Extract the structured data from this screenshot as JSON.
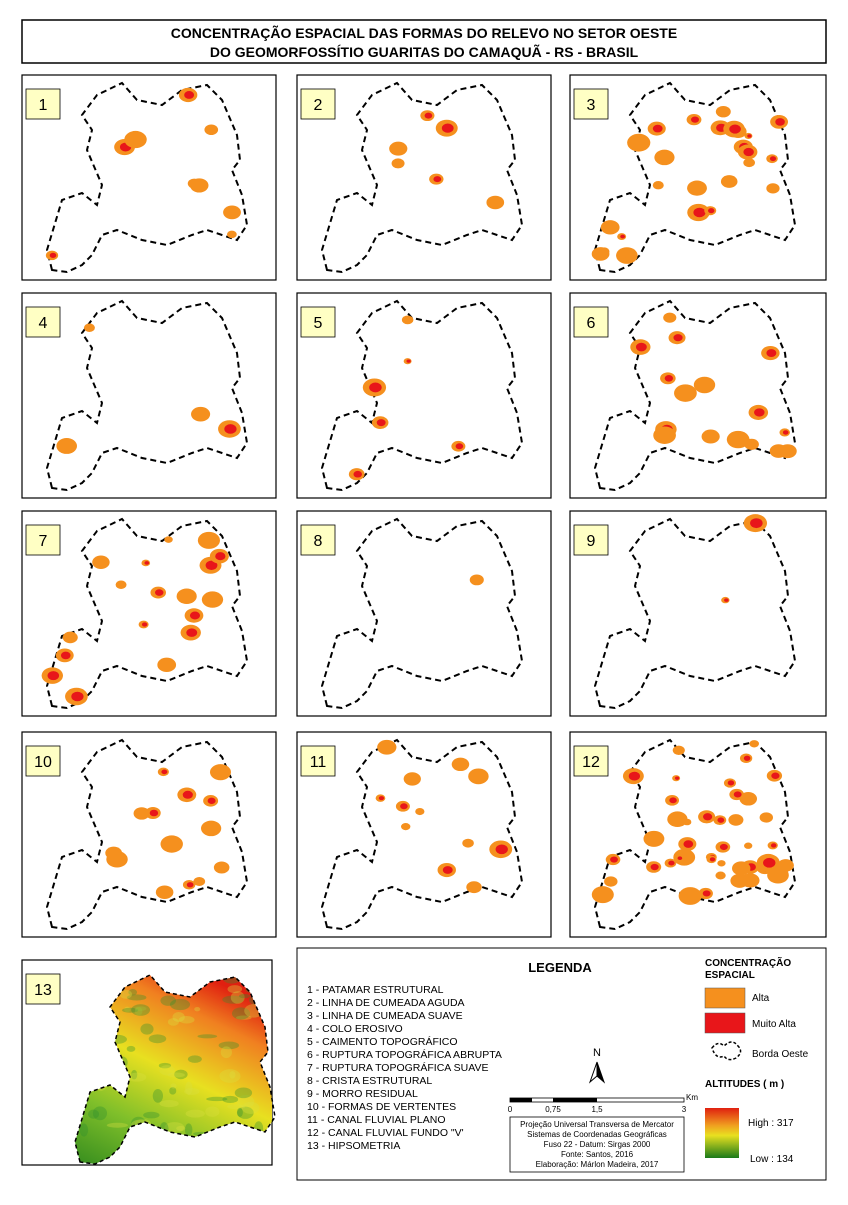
{
  "title": [
    "CONCENTRAÇÃO ESPACIAL DAS FORMAS DO RELEVO NO SETOR OESTE",
    "DO GEOMORFOSSÍTIO GUARITAS DO CAMAQUÃ - RS - BRASIL"
  ],
  "panels": [
    "1",
    "2",
    "3",
    "4",
    "5",
    "6",
    "7",
    "8",
    "9",
    "10",
    "11",
    "12",
    "13"
  ],
  "legend": {
    "title": "LEGENDA",
    "items": [
      "1 - PATAMAR ESTRUTURAL",
      "2 - LINHA DE CUMEADA AGUDA",
      "3 - LINHA DE CUMEADA SUAVE",
      "4 - COLO EROSIVO",
      "5 - CAIMENTO TOPOGRÁFICO",
      "6 - RUPTURA TOPOGRÁFICA ABRUPTA",
      "7 - RUPTURA TOPOGRÁFICA SUAVE",
      "8 - CRISTA ESTRUTURAL",
      "9 - MORRO RESIDUAL",
      "10 - FORMAS DE VERTENTES",
      "11 - CANAL FLUVIAL PLANO",
      "12 - CANAL FLUVIAL FUNDO \"V'",
      "13 - HIPSOMETRIA"
    ],
    "concentration_title": [
      "CONCENTRAÇÃO",
      "ESPACIAL"
    ],
    "classes": [
      "Alta",
      "Muito Alta"
    ],
    "border": "Borda Oeste",
    "altitudes_title": "ALTITUDES ( m )",
    "high": "High : 317",
    "low": "Low : 134",
    "north": "N",
    "scale_ticks": [
      "0",
      "0,75",
      "1,5",
      "3"
    ],
    "scale_unit": "Km",
    "credits": [
      "Projeção Universal Transversa de Mercator",
      "Sistemas de Coordenadas Geográficas",
      "Fuso 22 - Datum: Sirgas 2000",
      "Fonte: Santos, 2016",
      "Elaboração: Márlon Madeira, 2017"
    ]
  }
}
